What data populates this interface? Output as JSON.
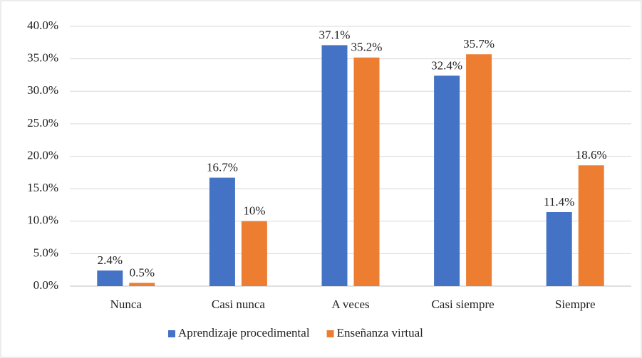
{
  "chart_data": {
    "type": "bar",
    "categories": [
      "Nunca",
      "Casi nunca",
      "A veces",
      "Casi siempre",
      "Siempre"
    ],
    "series": [
      {
        "name": "Aprendizaje procedimental",
        "color": "#4472c4",
        "values": [
          2.4,
          16.7,
          37.1,
          32.4,
          11.4
        ],
        "value_labels": [
          "2.4%",
          "16.7%",
          "37.1%",
          "32.4%",
          "11.4%"
        ]
      },
      {
        "name": "Enseñanza virtual",
        "color": "#ed7d31",
        "values": [
          0.5,
          10,
          35.2,
          35.7,
          18.6
        ],
        "value_labels": [
          "0.5%",
          "10%",
          "35.2%",
          "35.7%",
          "18.6%"
        ]
      }
    ],
    "ylim": [
      0,
      40
    ],
    "yticks": [
      {
        "value": 0,
        "label": "0.0%"
      },
      {
        "value": 5,
        "label": "5.0%"
      },
      {
        "value": 10,
        "label": "10.0%"
      },
      {
        "value": 15,
        "label": "15.0%"
      },
      {
        "value": 20,
        "label": "20.0%"
      },
      {
        "value": 25,
        "label": "25.0%"
      },
      {
        "value": 30,
        "label": "30.0%"
      },
      {
        "value": 35,
        "label": "35.0%"
      },
      {
        "value": 40,
        "label": "40.0%"
      }
    ],
    "grid": true,
    "legend": "bottom"
  }
}
